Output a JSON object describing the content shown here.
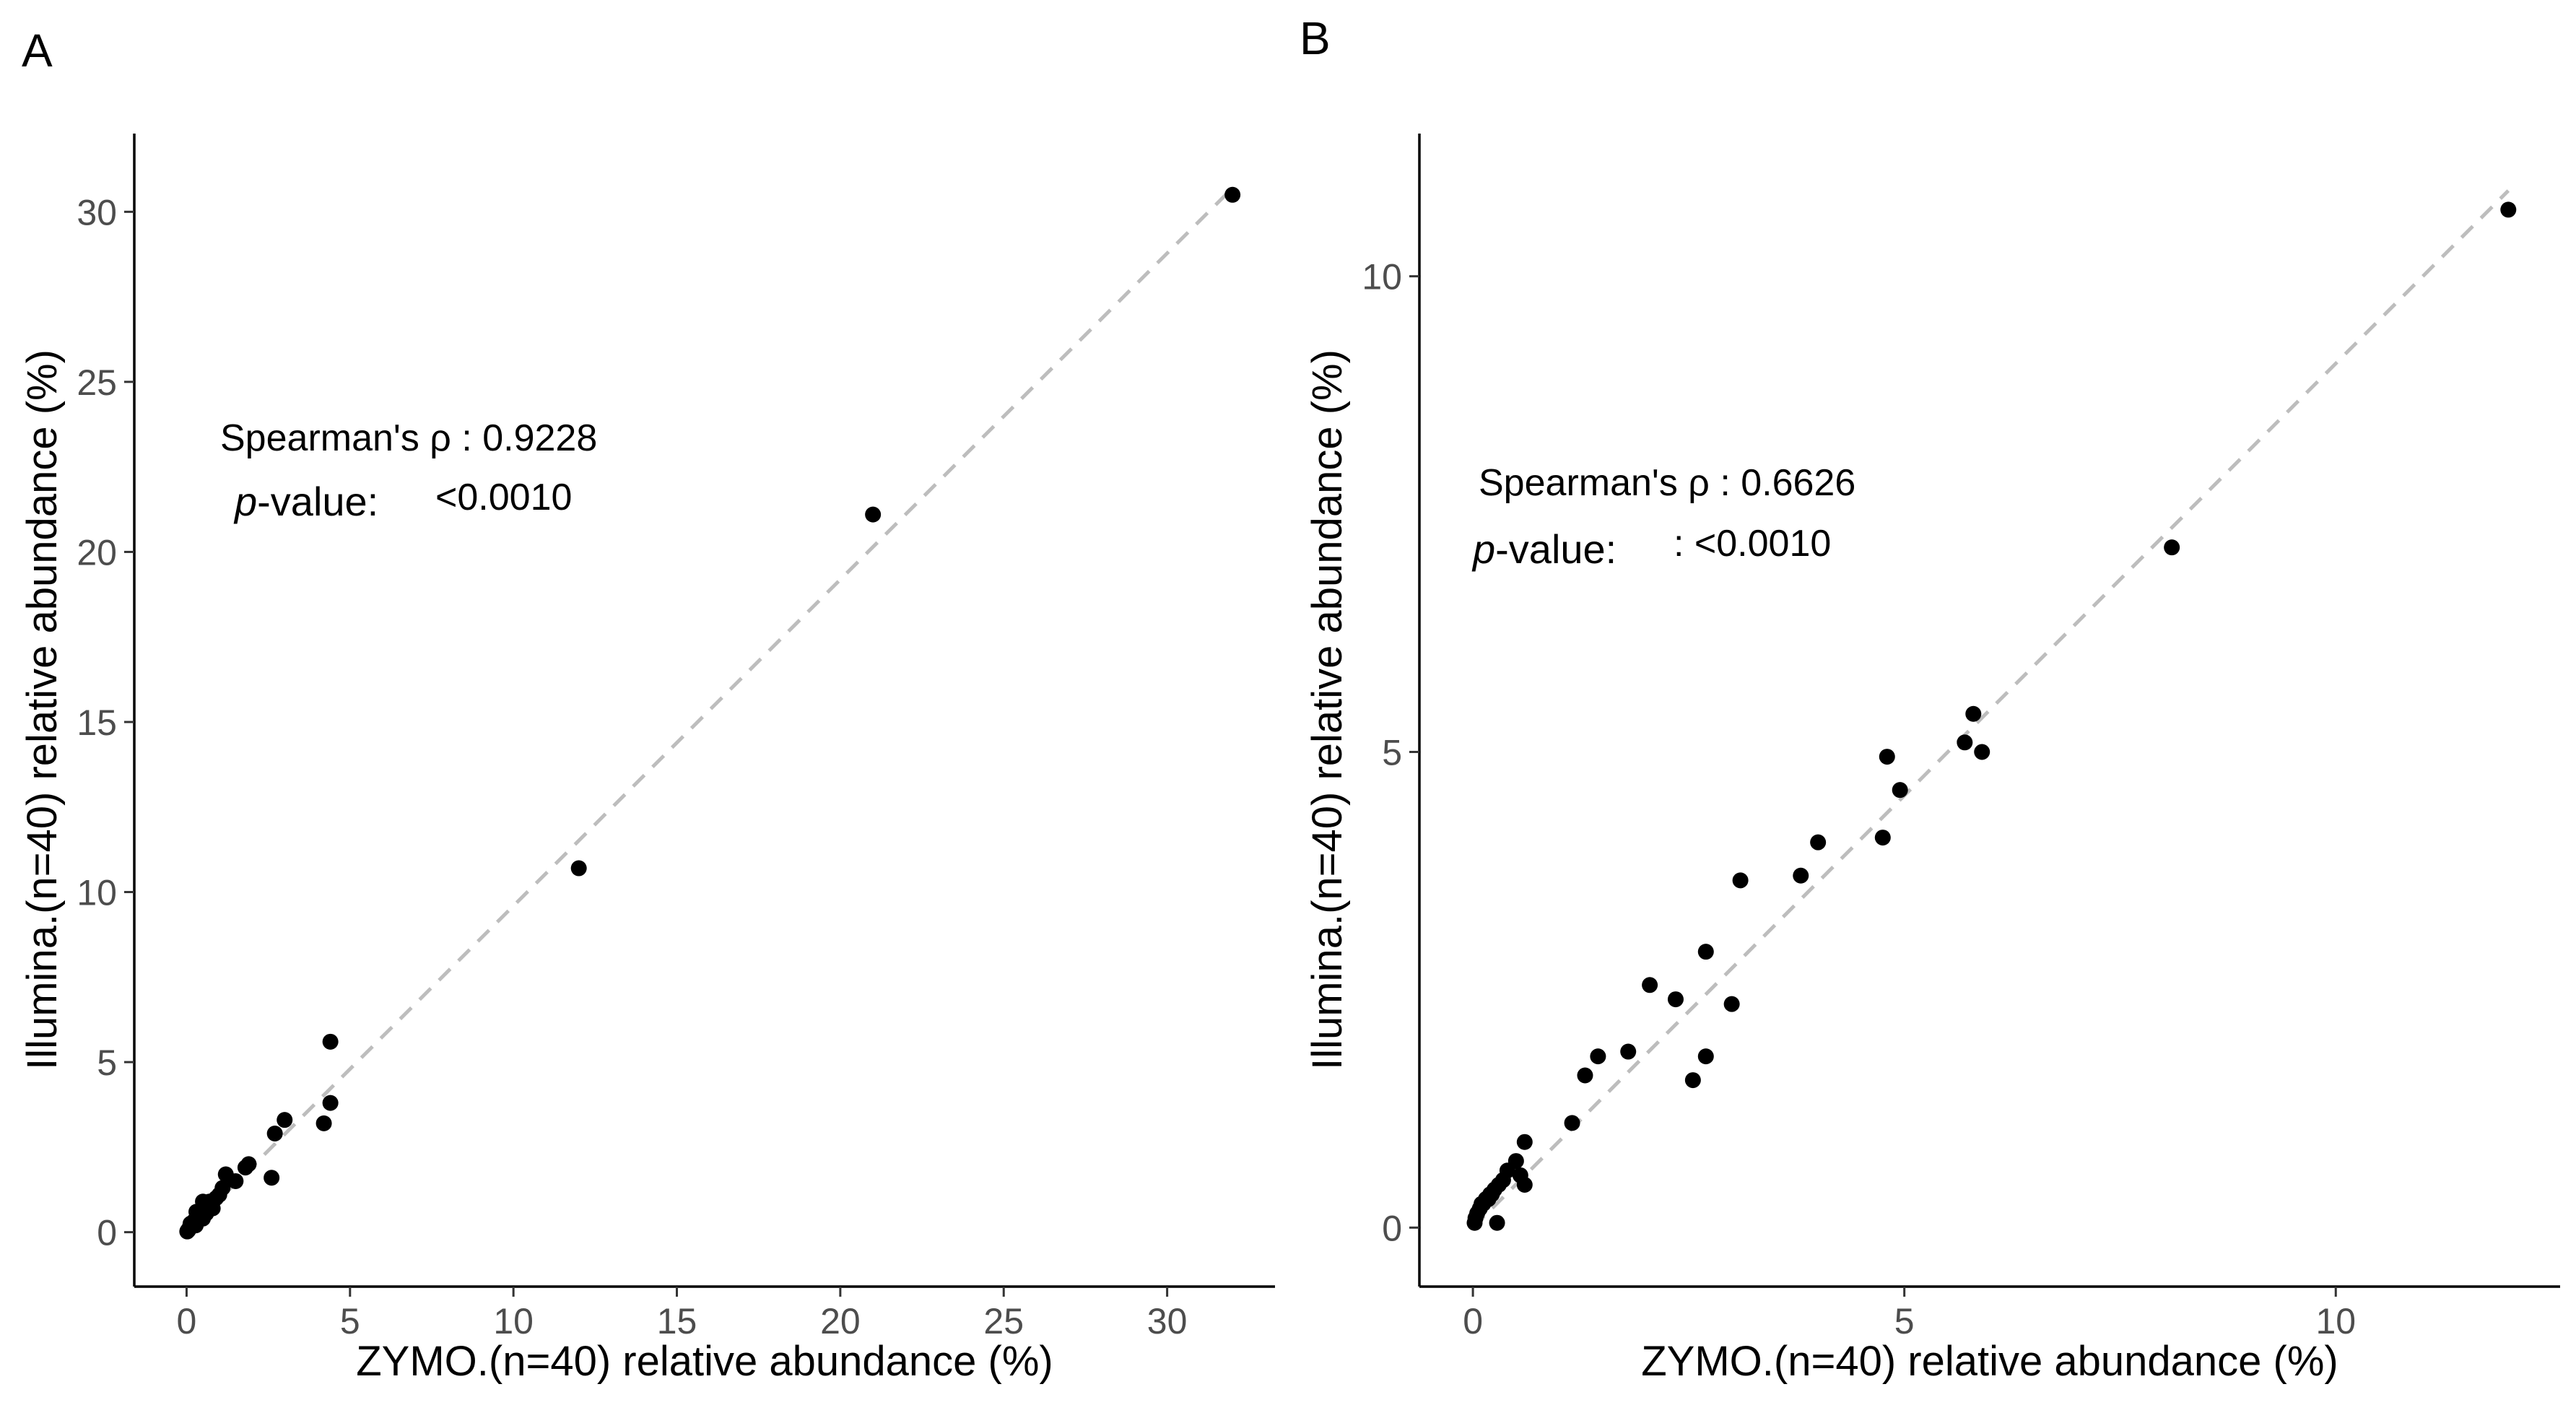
{
  "chart_data": [
    {
      "type": "scatter",
      "panel_label": "A",
      "xlabel": "ZYMO.(n=40) relative abundance (%)",
      "ylabel": "Illumina.(n=40) relative abundance (%)",
      "xlim": [
        -1.6,
        33.3
      ],
      "ylim": [
        -1.6,
        32.3
      ],
      "xticks": [
        0,
        5,
        10,
        15,
        20,
        25,
        30
      ],
      "yticks": [
        0,
        5,
        10,
        15,
        20,
        25,
        30
      ],
      "grid": false,
      "annotation": {
        "label": "Spearman's ρ : 0.9228",
        "p_label_italic": "p",
        "p_label_rest": "-value:",
        "p_value": "<0.0010"
      },
      "fit_line": {
        "x": [
          0,
          32.0
        ],
        "y": [
          0,
          30.7
        ]
      },
      "points": {
        "x": [
          32.0,
          21.0,
          12.0,
          4.4,
          4.4,
          4.2,
          3.0,
          2.7,
          2.6,
          1.9,
          1.8,
          1.2,
          1.1,
          0.9,
          0.7,
          0.5,
          0.45,
          0.4,
          0.35,
          0.3,
          0.25,
          0.2,
          0.15,
          0.1,
          0.08,
          0.05,
          0.12,
          0.18,
          0.22,
          0.28,
          0.6,
          0.8,
          1.0,
          0.02,
          0.03,
          0.06,
          0.3,
          0.5,
          0.7,
          1.5
        ],
        "y": [
          30.5,
          21.1,
          10.7,
          5.6,
          3.8,
          3.2,
          3.3,
          2.9,
          1.6,
          2.0,
          1.9,
          1.7,
          1.3,
          1.0,
          0.8,
          0.9,
          0.6,
          0.5,
          0.45,
          0.4,
          0.35,
          0.3,
          0.2,
          0.15,
          0.1,
          0.05,
          0.25,
          0.2,
          0.3,
          0.2,
          0.55,
          0.7,
          1.1,
          0.02,
          0.04,
          0.08,
          0.6,
          0.4,
          0.9,
          1.5
        ]
      }
    },
    {
      "type": "scatter",
      "panel_label": "B",
      "xlabel": "ZYMO.(n=40) relative abundance (%)",
      "ylabel": "Illumina.(n=40) relative abundance (%)",
      "xlim": [
        -0.62,
        12.6
      ],
      "ylim": [
        -0.62,
        11.5
      ],
      "xticks": [
        0,
        5,
        10
      ],
      "yticks": [
        0,
        5,
        10
      ],
      "grid": false,
      "annotation": {
        "label": "Spearman's ρ : 0.6626",
        "p_label_italic": "p",
        "p_label_rest": "-value:",
        "p_value": ": <0.0010"
      },
      "fit_line": {
        "x": [
          0,
          12.0
        ],
        "y": [
          0,
          10.9
        ]
      },
      "points": {
        "x": [
          12.0,
          8.1,
          5.8,
          5.7,
          5.9,
          4.8,
          4.95,
          4.75,
          4.0,
          3.8,
          3.1,
          2.7,
          2.05,
          2.35,
          3.0,
          1.45,
          1.8,
          2.7,
          2.55,
          1.3,
          1.15,
          0.6,
          0.5,
          0.55,
          0.6,
          0.4,
          0.35,
          0.3,
          0.25,
          0.2,
          0.15,
          0.1,
          0.08,
          0.05,
          0.03,
          0.02,
          0.12,
          0.18,
          0.22,
          0.28
        ],
        "y": [
          10.7,
          7.15,
          5.4,
          5.1,
          5.0,
          4.95,
          4.6,
          4.1,
          4.05,
          3.7,
          3.65,
          2.9,
          2.55,
          2.4,
          2.35,
          1.8,
          1.85,
          1.8,
          1.55,
          1.6,
          1.1,
          0.9,
          0.7,
          0.55,
          0.45,
          0.6,
          0.5,
          0.45,
          0.4,
          0.35,
          0.3,
          0.25,
          0.2,
          0.15,
          0.1,
          0.05,
          0.25,
          0.3,
          0.35,
          0.05
        ]
      }
    }
  ]
}
